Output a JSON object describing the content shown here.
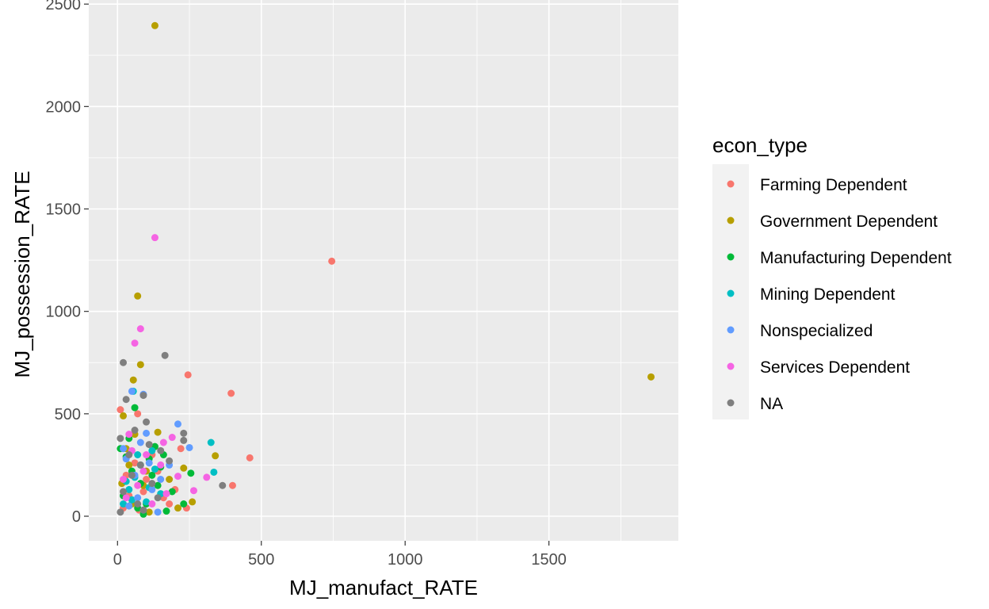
{
  "chart_data": {
    "type": "scatter",
    "title": "",
    "xlabel": "MJ_manufact_RATE",
    "ylabel": "MJ_possession_RATE",
    "xlim": [
      -100,
      1950
    ],
    "ylim": [
      -120,
      2520
    ],
    "x_ticks": [
      0,
      500,
      1000,
      1500
    ],
    "y_ticks": [
      0,
      500,
      1000,
      1500,
      2000,
      2500
    ],
    "x_tick_labels": [
      "0",
      "500",
      "1000",
      "1500"
    ],
    "y_tick_labels": [
      "0",
      "500",
      "1000",
      "1500",
      "2000",
      "2500"
    ],
    "grid": true,
    "legend_position": "right",
    "legend_title": "econ_type",
    "panel_background": "#EBEBEB",
    "series": [
      {
        "name": "Farming Dependent",
        "color": "#F8766D",
        "points": [
          [
            745,
            1245
          ],
          [
            395,
            600
          ],
          [
            460,
            285
          ],
          [
            400,
            150
          ],
          [
            245,
            690
          ],
          [
            220,
            330
          ],
          [
            70,
            500
          ],
          [
            240,
            40
          ],
          [
            10,
            520
          ],
          [
            100,
            180
          ],
          [
            40,
            100
          ],
          [
            140,
            220
          ],
          [
            180,
            60
          ],
          [
            60,
            260
          ],
          [
            20,
            40
          ],
          [
            90,
            120
          ],
          [
            120,
            300
          ],
          [
            30,
            200
          ],
          [
            160,
            90
          ],
          [
            75,
            30
          ],
          [
            200,
            130
          ]
        ]
      },
      {
        "name": "Government Dependent",
        "color": "#B79F00",
        "points": [
          [
            130,
            2395
          ],
          [
            1855,
            680
          ],
          [
            70,
            1075
          ],
          [
            80,
            740
          ],
          [
            55,
            665
          ],
          [
            20,
            490
          ],
          [
            340,
            295
          ],
          [
            260,
            70
          ],
          [
            230,
            235
          ],
          [
            140,
            410
          ],
          [
            100,
            220
          ],
          [
            50,
            60
          ],
          [
            90,
            150
          ],
          [
            30,
            330
          ],
          [
            110,
            20
          ],
          [
            180,
            180
          ],
          [
            60,
            400
          ],
          [
            15,
            160
          ],
          [
            210,
            40
          ],
          [
            40,
            250
          ]
        ]
      },
      {
        "name": "Manufacturing Dependent",
        "color": "#00BA38",
        "points": [
          [
            255,
            210
          ],
          [
            170,
            25
          ],
          [
            230,
            60
          ],
          [
            150,
            240
          ],
          [
            110,
            280
          ],
          [
            130,
            340
          ],
          [
            60,
            530
          ],
          [
            40,
            380
          ],
          [
            80,
            160
          ],
          [
            20,
            100
          ],
          [
            100,
            60
          ],
          [
            50,
            220
          ],
          [
            190,
            120
          ],
          [
            70,
            40
          ],
          [
            140,
            150
          ],
          [
            30,
            290
          ],
          [
            120,
            200
          ],
          [
            90,
            10
          ],
          [
            10,
            330
          ],
          [
            160,
            300
          ]
        ]
      },
      {
        "name": "Mining Dependent",
        "color": "#00BFC4",
        "points": [
          [
            325,
            360
          ],
          [
            335,
            215
          ],
          [
            55,
            610
          ],
          [
            120,
            320
          ],
          [
            80,
            250
          ],
          [
            40,
            130
          ],
          [
            100,
            70
          ],
          [
            60,
            190
          ],
          [
            150,
            110
          ],
          [
            20,
            60
          ],
          [
            70,
            300
          ],
          [
            90,
            30
          ],
          [
            30,
            170
          ],
          [
            110,
            140
          ],
          [
            50,
            80
          ],
          [
            130,
            230
          ]
        ]
      },
      {
        "name": "Nonspecialized",
        "color": "#619CFF",
        "points": [
          [
            210,
            450
          ],
          [
            250,
            335
          ],
          [
            90,
            595
          ],
          [
            50,
            610
          ],
          [
            180,
            250
          ],
          [
            100,
            405
          ],
          [
            60,
            200
          ],
          [
            30,
            280
          ],
          [
            120,
            130
          ],
          [
            70,
            90
          ],
          [
            20,
            330
          ],
          [
            150,
            180
          ],
          [
            40,
            50
          ],
          [
            80,
            360
          ],
          [
            110,
            260
          ],
          [
            140,
            20
          ]
        ]
      },
      {
        "name": "Services Dependent",
        "color": "#F564E3",
        "points": [
          [
            130,
            1360
          ],
          [
            80,
            915
          ],
          [
            60,
            845
          ],
          [
            310,
            190
          ],
          [
            265,
            125
          ],
          [
            190,
            385
          ],
          [
            210,
            195
          ],
          [
            40,
            400
          ],
          [
            100,
            300
          ],
          [
            70,
            150
          ],
          [
            150,
            250
          ],
          [
            30,
            90
          ],
          [
            120,
            60
          ],
          [
            90,
            220
          ],
          [
            50,
            320
          ],
          [
            170,
            110
          ],
          [
            20,
            180
          ],
          [
            160,
            360
          ]
        ]
      },
      {
        "name": "NA",
        "color": "#7F7F7F",
        "points": [
          [
            165,
            785
          ],
          [
            20,
            750
          ],
          [
            90,
            590
          ],
          [
            30,
            570
          ],
          [
            365,
            150
          ],
          [
            230,
            405
          ],
          [
            230,
            370
          ],
          [
            180,
            270
          ],
          [
            100,
            460
          ],
          [
            60,
            420
          ],
          [
            10,
            380
          ],
          [
            40,
            300
          ],
          [
            80,
            250
          ],
          [
            120,
            160
          ],
          [
            140,
            90
          ],
          [
            20,
            120
          ],
          [
            70,
            60
          ],
          [
            110,
            350
          ],
          [
            50,
            200
          ],
          [
            90,
            30
          ],
          [
            150,
            320
          ],
          [
            10,
            20
          ]
        ]
      }
    ]
  }
}
